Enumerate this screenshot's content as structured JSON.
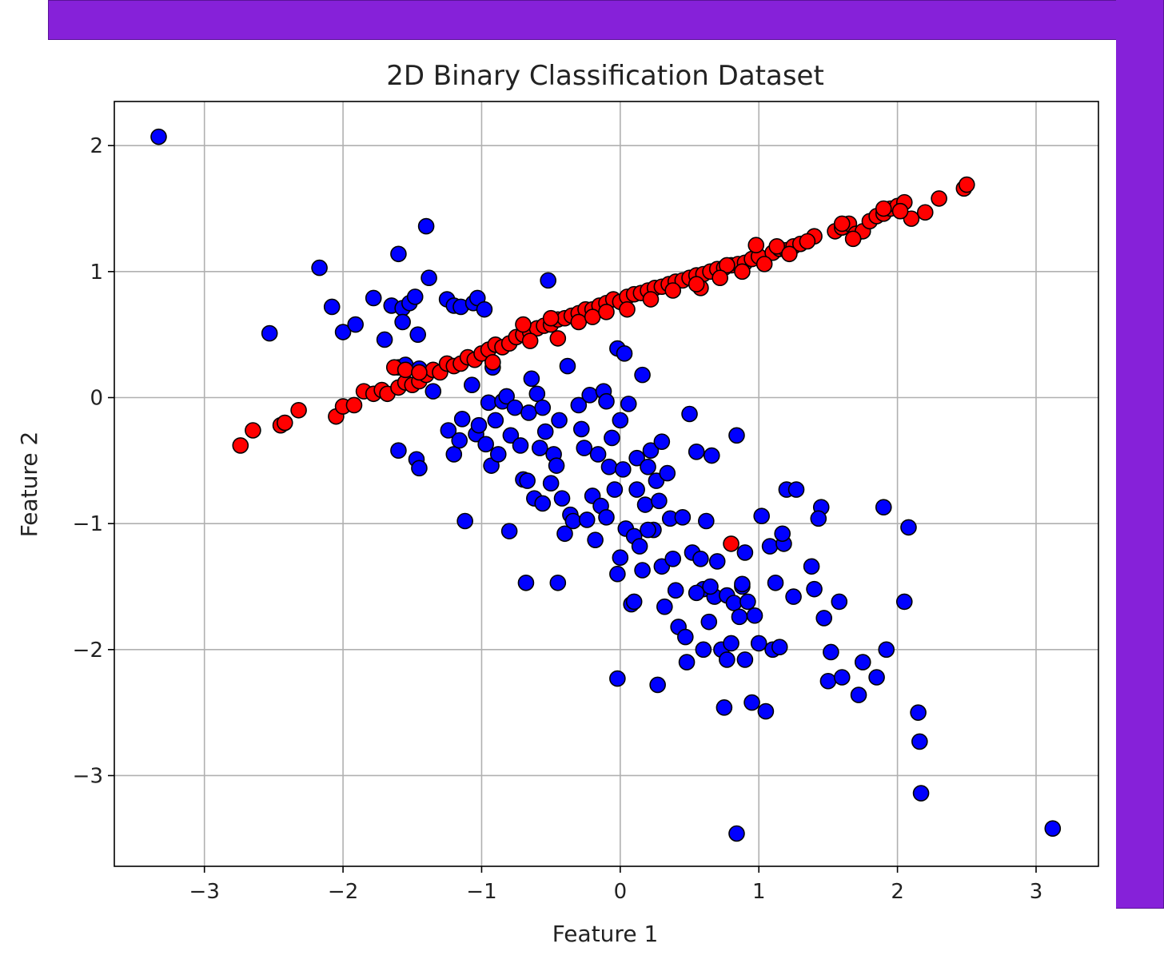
{
  "colors": {
    "frame": "#8621d9",
    "class_0": "#0000ff",
    "class_1": "#ff0000",
    "marker_edge": "#000000",
    "grid": "#b0b0b0"
  },
  "chart_data": {
    "type": "scatter",
    "title": "2D Binary Classification Dataset",
    "xlabel": "Feature 1",
    "ylabel": "Feature 2",
    "xlim": [
      -3.65,
      3.45
    ],
    "ylim": [
      -3.72,
      2.35
    ],
    "grid": true,
    "x_ticks": [
      {
        "value": -3,
        "label": "−3"
      },
      {
        "value": -2,
        "label": "−2"
      },
      {
        "value": -1,
        "label": "−1"
      },
      {
        "value": 0,
        "label": "0"
      },
      {
        "value": 1,
        "label": "1"
      },
      {
        "value": 2,
        "label": "2"
      },
      {
        "value": 3,
        "label": "3"
      }
    ],
    "y_ticks": [
      {
        "value": -3,
        "label": "−3"
      },
      {
        "value": -2,
        "label": "−2"
      },
      {
        "value": -1,
        "label": "−1"
      },
      {
        "value": 0,
        "label": "0"
      },
      {
        "value": 1,
        "label": "1"
      },
      {
        "value": 2,
        "label": "2"
      }
    ],
    "series": [
      {
        "color": "#0000ff",
        "points": [
          [
            -3.33,
            2.07
          ],
          [
            -2.53,
            0.51
          ],
          [
            -2.17,
            1.03
          ],
          [
            -2.08,
            0.72
          ],
          [
            -2.0,
            0.52
          ],
          [
            -1.91,
            0.58
          ],
          [
            -1.78,
            0.79
          ],
          [
            -1.7,
            0.46
          ],
          [
            -1.65,
            0.73
          ],
          [
            -1.6,
            1.14
          ],
          [
            -1.57,
            0.71
          ],
          [
            -1.57,
            0.6
          ],
          [
            -1.52,
            0.75
          ],
          [
            -1.48,
            0.8
          ],
          [
            -1.46,
            0.5
          ],
          [
            -1.4,
            1.36
          ],
          [
            -1.38,
            0.95
          ],
          [
            -1.35,
            0.05
          ],
          [
            -1.25,
            0.78
          ],
          [
            -1.2,
            0.73
          ],
          [
            -1.15,
            0.72
          ],
          [
            -1.06,
            0.75
          ],
          [
            -1.03,
            0.79
          ],
          [
            -0.98,
            0.7
          ],
          [
            -1.6,
            0.24
          ],
          [
            -1.55,
            0.26
          ],
          [
            -1.45,
            0.23
          ],
          [
            -1.6,
            -0.42
          ],
          [
            -1.47,
            -0.49
          ],
          [
            -1.45,
            -0.56
          ],
          [
            -1.24,
            -0.26
          ],
          [
            -1.2,
            -0.45
          ],
          [
            -1.16,
            -0.34
          ],
          [
            -1.14,
            -0.17
          ],
          [
            -1.12,
            -0.98
          ],
          [
            -1.07,
            0.1
          ],
          [
            -1.04,
            -0.29
          ],
          [
            -1.02,
            -0.22
          ],
          [
            -0.97,
            -0.37
          ],
          [
            -0.95,
            -0.04
          ],
          [
            -0.93,
            -0.54
          ],
          [
            -0.92,
            0.24
          ],
          [
            -0.9,
            -0.18
          ],
          [
            -0.88,
            -0.45
          ],
          [
            -0.85,
            -0.03
          ],
          [
            -0.82,
            0.01
          ],
          [
            -0.8,
            -1.06
          ],
          [
            -0.79,
            -0.3
          ],
          [
            -0.76,
            -0.08
          ],
          [
            -0.72,
            -0.38
          ],
          [
            -0.7,
            -0.65
          ],
          [
            -0.68,
            -1.47
          ],
          [
            -0.66,
            -0.12
          ],
          [
            -0.64,
            0.15
          ],
          [
            -0.62,
            -0.8
          ],
          [
            -0.6,
            0.03
          ],
          [
            -0.58,
            -0.4
          ],
          [
            -0.56,
            -0.08
          ],
          [
            -0.54,
            -0.27
          ],
          [
            -0.52,
            0.93
          ],
          [
            -0.5,
            -0.68
          ],
          [
            -0.48,
            -0.45
          ],
          [
            -0.46,
            -0.54
          ],
          [
            -0.44,
            -0.18
          ],
          [
            -0.42,
            -0.8
          ],
          [
            -0.4,
            -1.08
          ],
          [
            -0.38,
            0.25
          ],
          [
            -0.36,
            -0.93
          ],
          [
            -0.34,
            -0.98
          ],
          [
            -0.3,
            -0.06
          ],
          [
            -0.28,
            -0.25
          ],
          [
            -0.26,
            -0.4
          ],
          [
            -0.24,
            -0.97
          ],
          [
            -0.22,
            0.02
          ],
          [
            -0.2,
            -0.78
          ],
          [
            -0.18,
            -1.13
          ],
          [
            -0.16,
            -0.45
          ],
          [
            -0.14,
            -0.86
          ],
          [
            -0.12,
            0.05
          ],
          [
            -0.1,
            -0.95
          ],
          [
            -0.08,
            -0.55
          ],
          [
            -0.06,
            -0.32
          ],
          [
            -0.04,
            -0.73
          ],
          [
            -0.02,
            -1.4
          ],
          [
            0.0,
            -1.27
          ],
          [
            0.02,
            -0.57
          ],
          [
            0.04,
            -1.04
          ],
          [
            0.06,
            -0.05
          ],
          [
            0.08,
            -1.64
          ],
          [
            0.1,
            -1.1
          ],
          [
            0.12,
            -0.48
          ],
          [
            0.14,
            -1.18
          ],
          [
            0.16,
            -1.37
          ],
          [
            0.18,
            -0.85
          ],
          [
            0.2,
            -0.55
          ],
          [
            0.22,
            -0.42
          ],
          [
            0.24,
            -1.05
          ],
          [
            0.26,
            -0.66
          ],
          [
            0.28,
            -0.82
          ],
          [
            0.3,
            -1.34
          ],
          [
            0.32,
            -1.66
          ],
          [
            0.34,
            -0.6
          ],
          [
            0.36,
            -0.96
          ],
          [
            0.38,
            -1.28
          ],
          [
            0.4,
            -1.53
          ],
          [
            0.42,
            -1.82
          ],
          [
            0.45,
            -0.95
          ],
          [
            0.47,
            -1.9
          ],
          [
            0.48,
            -2.1
          ],
          [
            0.5,
            -0.13
          ],
          [
            0.52,
            -1.23
          ],
          [
            0.55,
            -0.43
          ],
          [
            0.58,
            -1.28
          ],
          [
            0.6,
            -1.52
          ],
          [
            0.62,
            -0.98
          ],
          [
            0.64,
            -1.78
          ],
          [
            0.66,
            -0.46
          ],
          [
            0.68,
            -1.58
          ],
          [
            0.7,
            -1.3
          ],
          [
            0.73,
            -2.0
          ],
          [
            0.75,
            -2.46
          ],
          [
            0.77,
            -1.57
          ],
          [
            0.8,
            -1.95
          ],
          [
            0.82,
            -1.63
          ],
          [
            0.84,
            -0.3
          ],
          [
            0.86,
            -1.74
          ],
          [
            0.88,
            -1.5
          ],
          [
            0.9,
            -1.23
          ],
          [
            0.92,
            -1.62
          ],
          [
            0.95,
            -2.42
          ],
          [
            0.97,
            -1.73
          ],
          [
            1.0,
            -1.95
          ],
          [
            1.02,
            -0.94
          ],
          [
            1.05,
            -2.49
          ],
          [
            1.08,
            -1.18
          ],
          [
            1.1,
            -2.0
          ],
          [
            1.12,
            -1.47
          ],
          [
            1.15,
            -1.98
          ],
          [
            1.18,
            -1.16
          ],
          [
            1.2,
            -0.73
          ],
          [
            1.25,
            -1.58
          ],
          [
            1.38,
            -1.34
          ],
          [
            1.4,
            -1.52
          ],
          [
            1.45,
            -0.87
          ],
          [
            1.47,
            -1.75
          ],
          [
            1.5,
            -2.25
          ],
          [
            1.52,
            -2.02
          ],
          [
            1.58,
            -1.62
          ],
          [
            1.6,
            -2.22
          ],
          [
            1.72,
            -2.36
          ],
          [
            1.75,
            -2.1
          ],
          [
            1.85,
            -2.22
          ],
          [
            1.9,
            -0.87
          ],
          [
            1.92,
            -2.0
          ],
          [
            2.05,
            -1.62
          ],
          [
            2.08,
            -1.03
          ],
          [
            2.15,
            -2.5
          ],
          [
            2.16,
            -2.73
          ],
          [
            2.17,
            -3.14
          ],
          [
            0.84,
            -3.46
          ],
          [
            3.12,
            -3.42
          ],
          [
            -0.02,
            -2.23
          ],
          [
            0.27,
            -2.28
          ],
          [
            0.1,
            -1.62
          ],
          [
            0.55,
            -1.55
          ],
          [
            0.65,
            -1.5
          ],
          [
            0.2,
            -1.05
          ],
          [
            0.88,
            -1.48
          ],
          [
            0.6,
            -2.0
          ],
          [
            0.77,
            -2.08
          ],
          [
            1.43,
            -0.96
          ],
          [
            1.17,
            -1.08
          ],
          [
            1.27,
            -0.73
          ],
          [
            0.9,
            -2.08
          ],
          [
            -0.45,
            -1.47
          ],
          [
            0.12,
            -0.73
          ],
          [
            -0.02,
            0.39
          ],
          [
            0.03,
            0.35
          ],
          [
            0.16,
            0.18
          ],
          [
            0.3,
            -0.35
          ],
          [
            -0.67,
            -0.66
          ],
          [
            -0.56,
            -0.84
          ],
          [
            0.0,
            -0.18
          ],
          [
            -0.1,
            -0.03
          ]
        ]
      },
      {
        "color": "#ff0000",
        "points": [
          [
            -2.74,
            -0.38
          ],
          [
            -2.65,
            -0.26
          ],
          [
            -2.45,
            -0.22
          ],
          [
            -2.42,
            -0.2
          ],
          [
            -2.32,
            -0.1
          ],
          [
            -2.05,
            -0.15
          ],
          [
            -2.0,
            -0.07
          ],
          [
            -1.92,
            -0.06
          ],
          [
            -1.85,
            0.05
          ],
          [
            -1.78,
            0.03
          ],
          [
            -1.72,
            0.06
          ],
          [
            -1.68,
            0.03
          ],
          [
            -1.6,
            0.08
          ],
          [
            -1.55,
            0.12
          ],
          [
            -1.5,
            0.1
          ],
          [
            -1.45,
            0.13
          ],
          [
            -1.4,
            0.18
          ],
          [
            -1.35,
            0.22
          ],
          [
            -1.3,
            0.2
          ],
          [
            -1.25,
            0.27
          ],
          [
            -1.2,
            0.25
          ],
          [
            -1.15,
            0.27
          ],
          [
            -1.1,
            0.32
          ],
          [
            -1.05,
            0.3
          ],
          [
            -1.0,
            0.35
          ],
          [
            -0.95,
            0.38
          ],
          [
            -0.9,
            0.42
          ],
          [
            -0.85,
            0.4
          ],
          [
            -0.8,
            0.43
          ],
          [
            -0.75,
            0.48
          ],
          [
            -0.7,
            0.5
          ],
          [
            -0.65,
            0.52
          ],
          [
            -0.6,
            0.55
          ],
          [
            -0.55,
            0.57
          ],
          [
            -0.5,
            0.58
          ],
          [
            -0.45,
            0.62
          ],
          [
            -0.4,
            0.63
          ],
          [
            -0.35,
            0.65
          ],
          [
            -0.3,
            0.67
          ],
          [
            -0.25,
            0.7
          ],
          [
            -0.2,
            0.7
          ],
          [
            -0.15,
            0.73
          ],
          [
            -0.1,
            0.75
          ],
          [
            -0.05,
            0.78
          ],
          [
            0.0,
            0.76
          ],
          [
            0.05,
            0.8
          ],
          [
            0.1,
            0.82
          ],
          [
            0.15,
            0.83
          ],
          [
            0.2,
            0.85
          ],
          [
            0.25,
            0.87
          ],
          [
            0.3,
            0.88
          ],
          [
            0.35,
            0.9
          ],
          [
            0.4,
            0.92
          ],
          [
            0.45,
            0.93
          ],
          [
            0.5,
            0.95
          ],
          [
            0.55,
            0.97
          ],
          [
            0.6,
            0.98
          ],
          [
            0.65,
            1.0
          ],
          [
            0.7,
            1.02
          ],
          [
            0.75,
            1.03
          ],
          [
            0.8,
            1.05
          ],
          [
            0.85,
            1.06
          ],
          [
            0.9,
            1.07
          ],
          [
            0.95,
            1.1
          ],
          [
            1.0,
            1.12
          ],
          [
            1.1,
            1.15
          ],
          [
            1.15,
            1.18
          ],
          [
            1.2,
            1.17
          ],
          [
            1.25,
            1.2
          ],
          [
            1.3,
            1.22
          ],
          [
            1.4,
            1.28
          ],
          [
            1.55,
            1.32
          ],
          [
            1.6,
            1.35
          ],
          [
            1.65,
            1.38
          ],
          [
            1.7,
            1.3
          ],
          [
            1.75,
            1.32
          ],
          [
            1.8,
            1.4
          ],
          [
            1.85,
            1.44
          ],
          [
            1.9,
            1.46
          ],
          [
            1.95,
            1.5
          ],
          [
            2.0,
            1.52
          ],
          [
            2.05,
            1.55
          ],
          [
            2.1,
            1.42
          ],
          [
            2.2,
            1.47
          ],
          [
            2.3,
            1.58
          ],
          [
            2.48,
            1.66
          ],
          [
            2.5,
            1.69
          ],
          [
            -1.63,
            0.24
          ],
          [
            -1.55,
            0.22
          ],
          [
            -1.45,
            0.2
          ],
          [
            -0.92,
            0.28
          ],
          [
            -0.65,
            0.45
          ],
          [
            -0.45,
            0.47
          ],
          [
            0.58,
            0.87
          ],
          [
            0.77,
            1.05
          ],
          [
            0.98,
            1.21
          ],
          [
            1.6,
            1.38
          ],
          [
            1.9,
            1.5
          ],
          [
            0.8,
            -1.16
          ],
          [
            -0.7,
            0.58
          ],
          [
            -0.5,
            0.63
          ],
          [
            -0.3,
            0.6
          ],
          [
            -0.2,
            0.64
          ],
          [
            -0.1,
            0.68
          ],
          [
            0.05,
            0.7
          ],
          [
            0.22,
            0.78
          ],
          [
            0.38,
            0.85
          ],
          [
            0.55,
            0.9
          ],
          [
            0.72,
            0.95
          ],
          [
            0.88,
            1.0
          ],
          [
            1.04,
            1.06
          ],
          [
            1.13,
            1.2
          ],
          [
            1.22,
            1.14
          ],
          [
            1.35,
            1.24
          ],
          [
            1.68,
            1.26
          ],
          [
            2.02,
            1.48
          ]
        ]
      }
    ]
  }
}
